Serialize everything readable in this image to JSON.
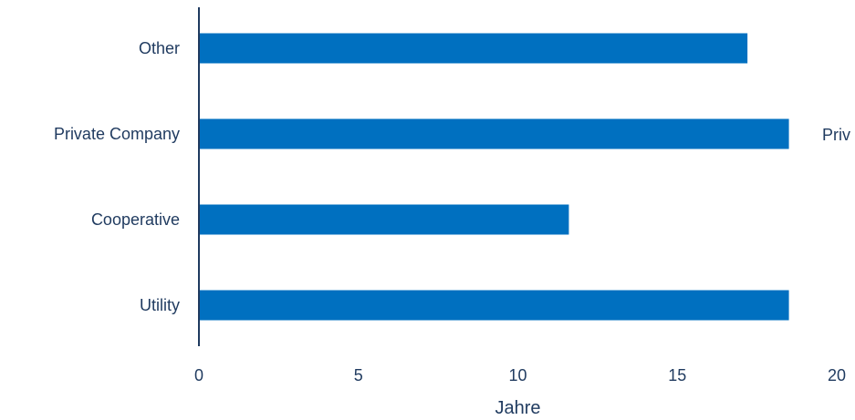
{
  "chart_data": {
    "type": "bar",
    "orientation": "horizontal",
    "categories": [
      "Other",
      "Private Company",
      "Cooperative",
      "Utility"
    ],
    "values": [
      17.2,
      18.5,
      11.6,
      18.5
    ],
    "bar_color": "#0070c0",
    "xlabel": "Jahre",
    "xlim": [
      0,
      20
    ],
    "xticks": [
      0,
      5,
      10,
      15,
      20
    ],
    "xtick_labels": [
      "0",
      "5",
      "10",
      "15",
      "20"
    ],
    "grid": false,
    "clipped_label": "Priv"
  }
}
